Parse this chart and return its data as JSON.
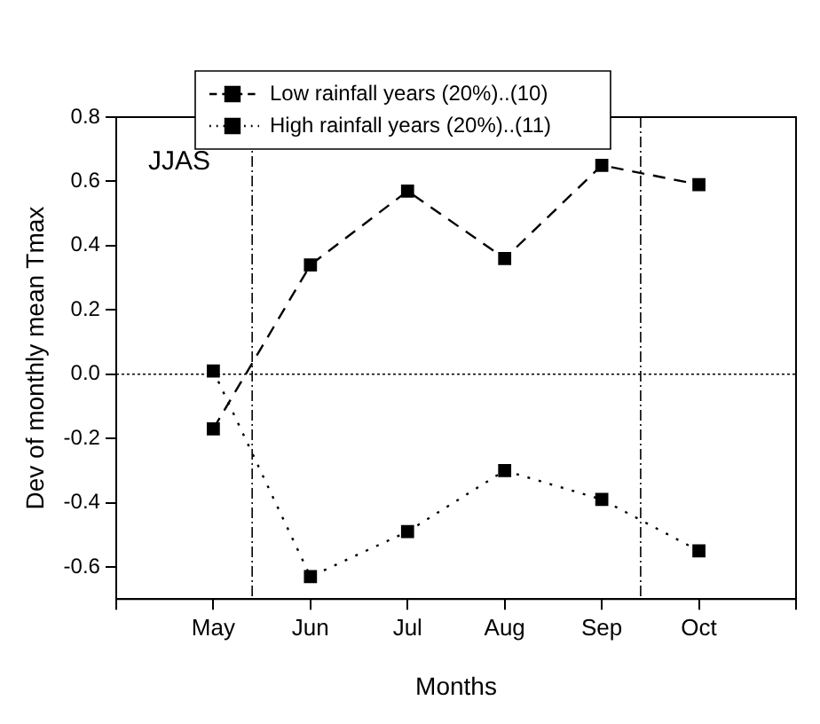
{
  "chart_data": {
    "type": "line",
    "xlabel": "Months",
    "ylabel": "Dev of monthly mean Tmax",
    "categories": [
      null,
      "May",
      "Jun",
      "Jul",
      "Aug",
      "Sep",
      "Oct",
      null
    ],
    "series": [
      {
        "name": "Low rainfall years (20%)..(10)",
        "color": "#000000",
        "values": [
          null,
          -0.17,
          0.34,
          0.57,
          0.36,
          0.65,
          0.59,
          null
        ],
        "marker": "square",
        "line_style": "dashed"
      },
      {
        "name": "High rainfall years (20%)..(11)",
        "color": "#000000",
        "values": [
          null,
          0.01,
          -0.63,
          -0.49,
          -0.3,
          -0.39,
          -0.55,
          null
        ],
        "marker": "square",
        "line_style": "dotted"
      }
    ],
    "ylim": [
      -0.7,
      0.8
    ],
    "yticks": [
      -0.6,
      -0.4,
      -0.2,
      {
        "value": 0,
        "label": "0.0"
      },
      0.2,
      0.4,
      0.6,
      0.8
    ],
    "ref_lines": [
      {
        "axis": "y",
        "value": 0,
        "line_style": "dotted"
      }
    ],
    "annotations": [
      "JJAS"
    ],
    "grid": false,
    "legend": "top"
  }
}
